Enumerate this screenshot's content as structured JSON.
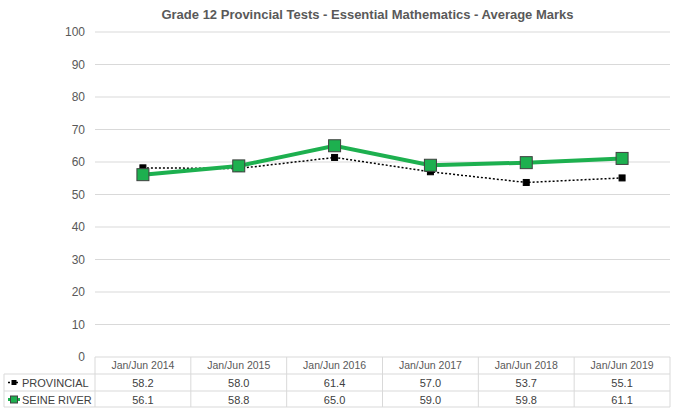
{
  "chart_data": {
    "type": "line",
    "title": "Grade 12 Provincial Tests - Essential Mathematics - Average Marks",
    "categories": [
      "Jan/Jun 2014",
      "Jan/Jun 2015",
      "Jan/Jun 2016",
      "Jan/Jun 2017",
      "Jan/Jun 2018",
      "Jan/Jun 2019"
    ],
    "series": [
      {
        "name": "PROVINCIAL",
        "color": "#000000",
        "marker": "square",
        "line_style": "dotted",
        "values": [
          58.2,
          58.0,
          61.4,
          57.0,
          53.7,
          55.1
        ]
      },
      {
        "name": "SEINE RIVER",
        "color": "#1db04f",
        "marker": "square",
        "line_style": "solid",
        "values": [
          56.1,
          58.8,
          65.0,
          59.0,
          59.8,
          61.1
        ]
      }
    ],
    "ylim": [
      0,
      100
    ],
    "yticks": [
      0,
      10,
      20,
      30,
      40,
      50,
      60,
      70,
      80,
      90,
      100
    ],
    "grid": true,
    "legend": "bottom"
  }
}
